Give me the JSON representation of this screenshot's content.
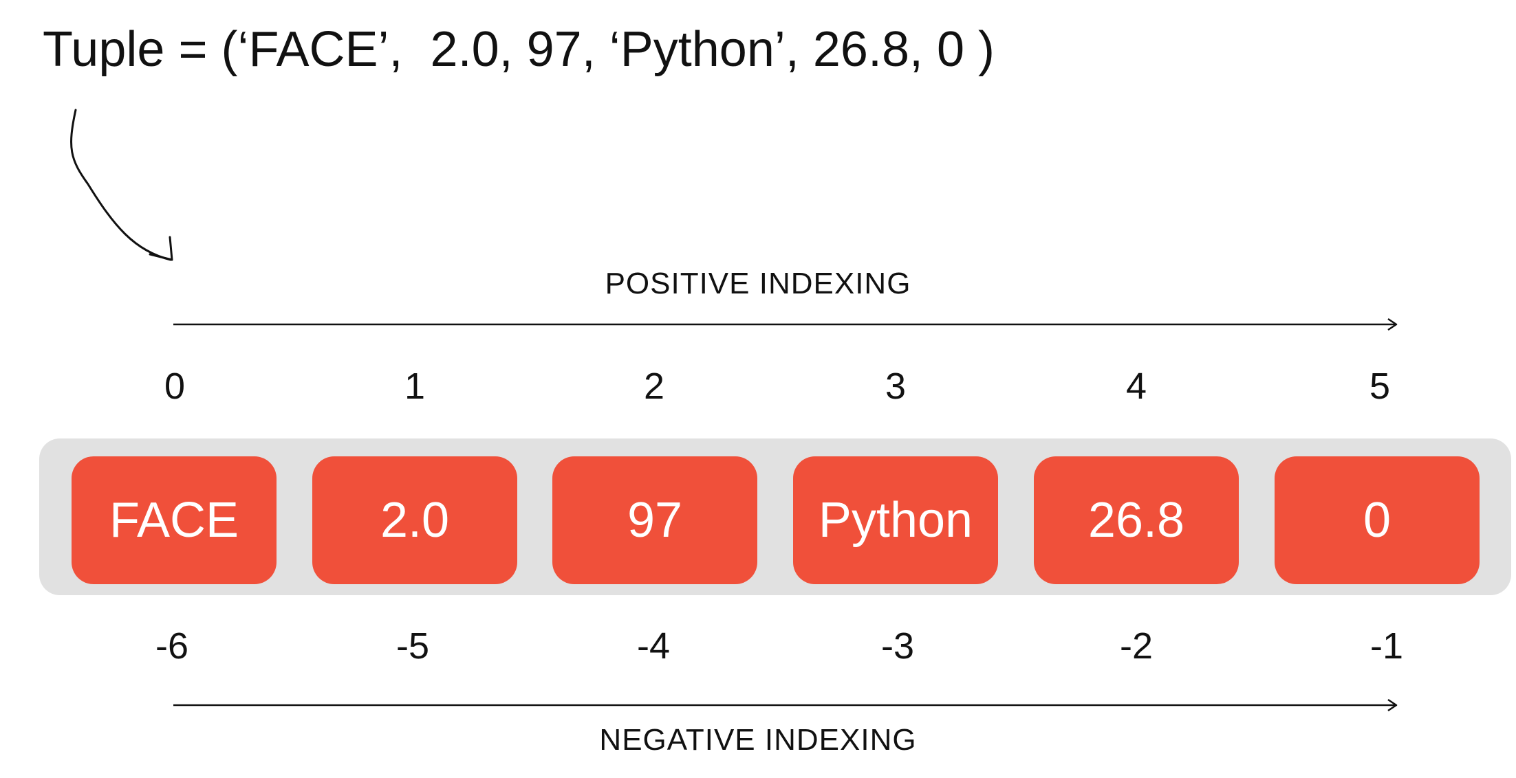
{
  "title": "Tuple = (‘FACE’,  2.0, 97, ‘Python’, 26.8, 0 )",
  "positive_label": "POSITIVE INDEXING",
  "negative_label": "NEGATIVE INDEXING",
  "elements": [
    "FACE",
    "2.0",
    "97",
    "Python",
    "26.8",
    "0"
  ],
  "positive_indices": [
    "0",
    "1",
    "2",
    "3",
    "4",
    "5"
  ],
  "negative_indices": [
    "-6",
    "-5",
    "-4",
    "-3",
    "-2",
    "-1"
  ],
  "colors": {
    "cell": "#f0503a",
    "tray": "#e1e1e1",
    "text": "#111111"
  }
}
